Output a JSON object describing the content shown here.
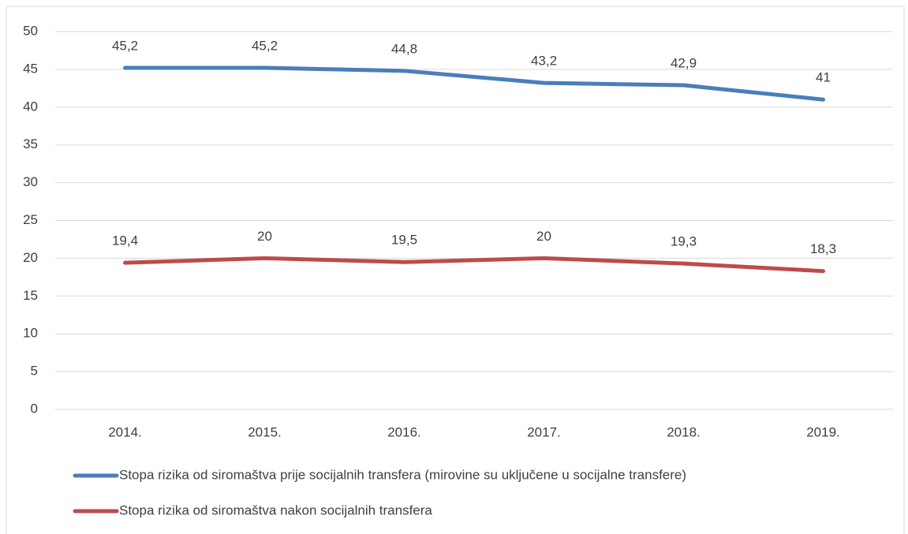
{
  "chart_data": {
    "type": "line",
    "categories": [
      "2014.",
      "2015.",
      "2016.",
      "2017.",
      "2018.",
      "2019."
    ],
    "series": [
      {
        "name": "Stopa rizika od siromaštva prije socijalnih transfera (mirovine su uključene u socijalne transfere)",
        "color": "#4a7ebb",
        "values": [
          45.2,
          45.2,
          44.8,
          43.2,
          42.9,
          41
        ],
        "value_labels": [
          "45,2",
          "45,2",
          "44,8",
          "43,2",
          "42,9",
          "41"
        ]
      },
      {
        "name": "Stopa rizika od siromaštva nakon socijalnih transfera",
        "color": "#be4b48",
        "values": [
          19.4,
          20,
          19.5,
          20,
          19.3,
          18.3
        ],
        "value_labels": [
          "19,4",
          "20",
          "19,5",
          "20",
          "19,3",
          "18,3"
        ]
      }
    ],
    "ylim": [
      0,
      50
    ],
    "yticks": [
      0,
      5,
      10,
      15,
      20,
      25,
      30,
      35,
      40,
      45,
      50
    ],
    "grid": true,
    "legend": "bottom"
  }
}
